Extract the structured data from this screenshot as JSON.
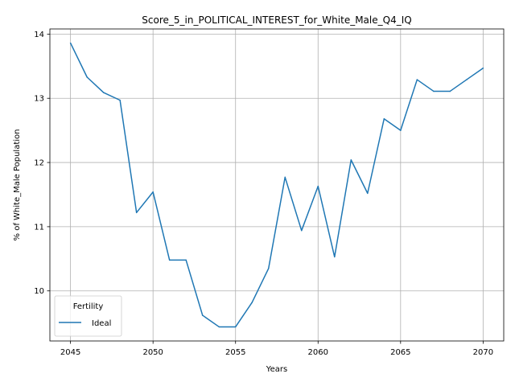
{
  "chart_data": {
    "type": "line",
    "title": "Score_5_in_POLITICAL_INTEREST_for_White_Male_Q4_IQ",
    "xlabel": "Years",
    "ylabel": "% of White_Male Population",
    "xlim": [
      2043.75,
      2071.25
    ],
    "ylim": [
      9.22,
      14.08
    ],
    "xticks": [
      2045,
      2050,
      2055,
      2060,
      2065,
      2070
    ],
    "yticks": [
      10,
      11,
      12,
      13,
      14
    ],
    "grid": true,
    "legend": {
      "title": "Fertility",
      "placement": "lower-left"
    },
    "colors": {
      "series": "#1f77b4"
    },
    "x": [
      2045,
      2046,
      2047,
      2048,
      2049,
      2050,
      2051,
      2052,
      2053,
      2054,
      2055,
      2056,
      2057,
      2058,
      2059,
      2060,
      2061,
      2062,
      2063,
      2064,
      2065,
      2066,
      2067,
      2068,
      2069,
      2070
    ],
    "series": [
      {
        "name": "Ideal",
        "values": [
          13.86,
          13.33,
          13.09,
          12.97,
          11.22,
          11.54,
          10.48,
          10.48,
          9.62,
          9.44,
          9.44,
          9.82,
          10.35,
          11.77,
          10.94,
          11.63,
          10.53,
          12.04,
          11.52,
          12.68,
          12.5,
          13.29,
          13.11,
          13.11,
          13.29,
          13.47
        ]
      }
    ]
  }
}
